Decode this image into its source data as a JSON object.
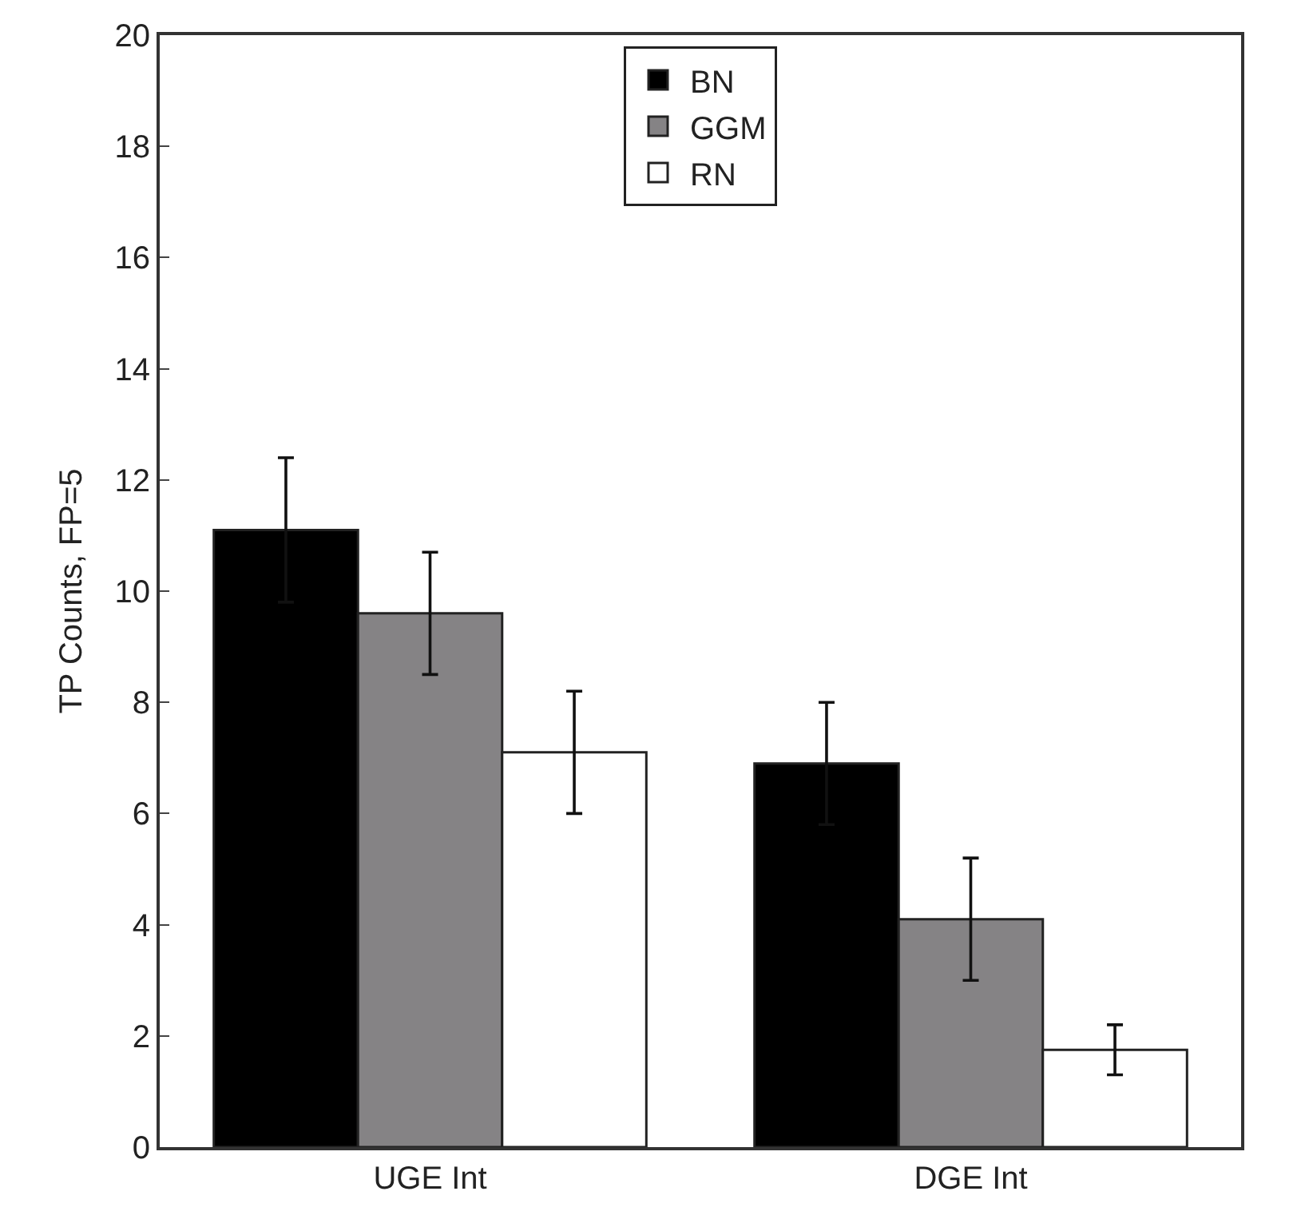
{
  "chart_data": {
    "type": "bar",
    "ylabel": "TP Counts, FP=5",
    "categories": [
      "UGE Int",
      "DGE Int"
    ],
    "series": [
      {
        "name": "BN",
        "color": "#000000",
        "values": [
          11.1,
          6.9
        ],
        "errors": [
          1.3,
          1.1
        ]
      },
      {
        "name": "GGM",
        "color": "#858385",
        "values": [
          9.6,
          4.1
        ],
        "errors": [
          1.1,
          1.1
        ]
      },
      {
        "name": "RN",
        "color": "#ffffff",
        "values": [
          7.1,
          1.75
        ],
        "errors": [
          1.1,
          0.45
        ]
      }
    ],
    "ylim": [
      0,
      20
    ],
    "yticks": [
      0,
      2,
      4,
      6,
      8,
      10,
      12,
      14,
      16,
      18,
      20
    ],
    "legend": "top"
  }
}
